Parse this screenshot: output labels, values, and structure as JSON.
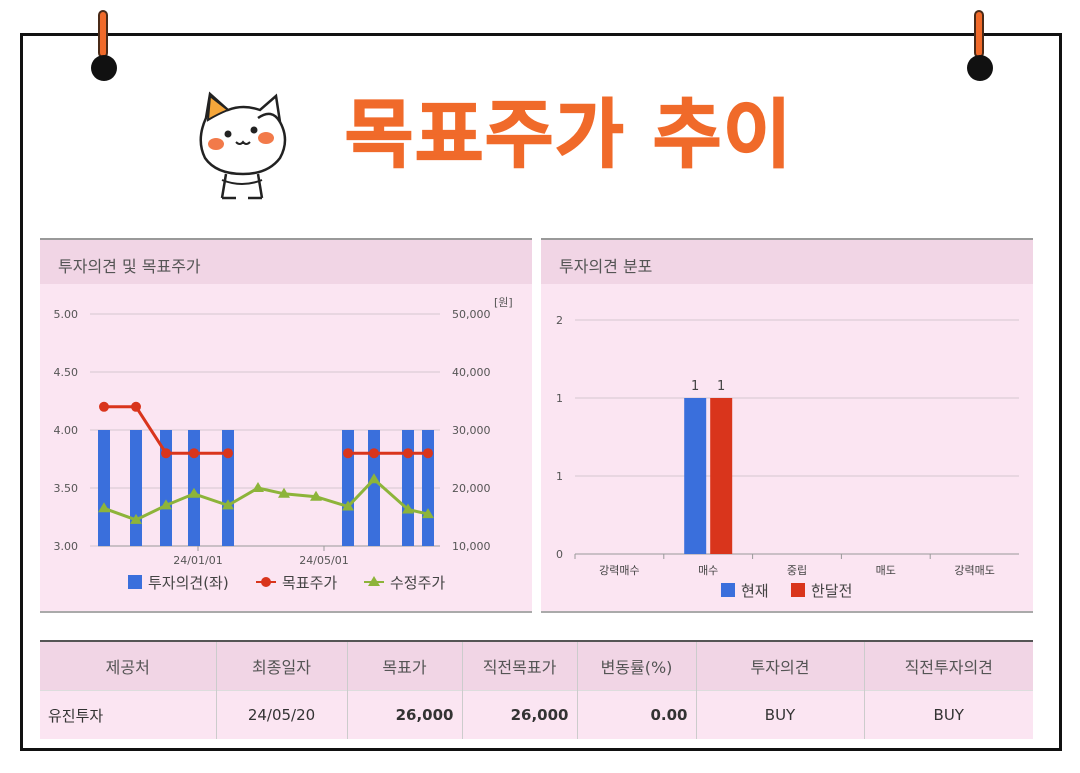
{
  "header": {
    "title": "목표주가 추이"
  },
  "left_panel": {
    "title": "투자의견 및 목표주가"
  },
  "right_panel": {
    "title": "투자의견 분포"
  },
  "chart_data": [
    {
      "type": "bar+line",
      "title": "투자의견 및 목표주가",
      "y_left": {
        "ticks": [
          "5.00",
          "4.50",
          "4.00",
          "3.50",
          "3.00"
        ],
        "ylim": [
          3.0,
          5.0
        ]
      },
      "y_right": {
        "unit": "[원]",
        "ticks": [
          "50,000",
          "40,000",
          "30,000",
          "20,000",
          "10,000"
        ],
        "ylim": [
          10000,
          50000
        ]
      },
      "x_ticks": [
        "24/01/01",
        "24/05/01"
      ],
      "series": [
        {
          "name": "투자의견(좌)",
          "kind": "bar",
          "color": "#3a6fdc",
          "x": [
            0,
            1,
            2,
            3,
            4,
            8,
            9,
            10,
            11
          ],
          "values": [
            4.0,
            4.0,
            4.0,
            4.0,
            4.0,
            4.0,
            4.0,
            4.0,
            4.0
          ]
        },
        {
          "name": "목표주가",
          "kind": "line",
          "color": "#d9351c",
          "x": [
            0,
            1,
            2,
            3,
            4,
            8,
            9,
            10,
            11
          ],
          "values": [
            34000,
            34000,
            26000,
            26000,
            26000,
            26000,
            26000,
            26000,
            26000
          ]
        },
        {
          "name": "수정주가",
          "kind": "line",
          "color": "#8db43a",
          "x": [
            0,
            1,
            2,
            3,
            4,
            5,
            6,
            7,
            8,
            9,
            10,
            11
          ],
          "values": [
            16500,
            14500,
            17000,
            19000,
            17000,
            20000,
            19000,
            18500,
            16800,
            21500,
            16300,
            15500
          ]
        }
      ],
      "legend": [
        "투자의견(좌)",
        "목표주가",
        "수정주가"
      ]
    },
    {
      "type": "bar",
      "title": "투자의견 분포",
      "categories": [
        "강력매수",
        "매수",
        "중립",
        "매도",
        "강력매도"
      ],
      "y_ticks": [
        "2",
        "1",
        "1",
        "0"
      ],
      "series": [
        {
          "name": "현재",
          "color": "#3a6fdc",
          "values": [
            0,
            1,
            0,
            0,
            0
          ]
        },
        {
          "name": "한달전",
          "color": "#d9351c",
          "values": [
            0,
            1,
            0,
            0,
            0
          ]
        }
      ],
      "data_labels": [
        "1",
        "1"
      ]
    }
  ],
  "table": {
    "headers": [
      "제공처",
      "최종일자",
      "목표가",
      "직전목표가",
      "변동률(%)",
      "투자의견",
      "직전투자의견"
    ],
    "row": [
      "유진투자",
      "24/05/20",
      "26,000",
      "26,000",
      "0.00",
      "BUY",
      "BUY"
    ]
  }
}
